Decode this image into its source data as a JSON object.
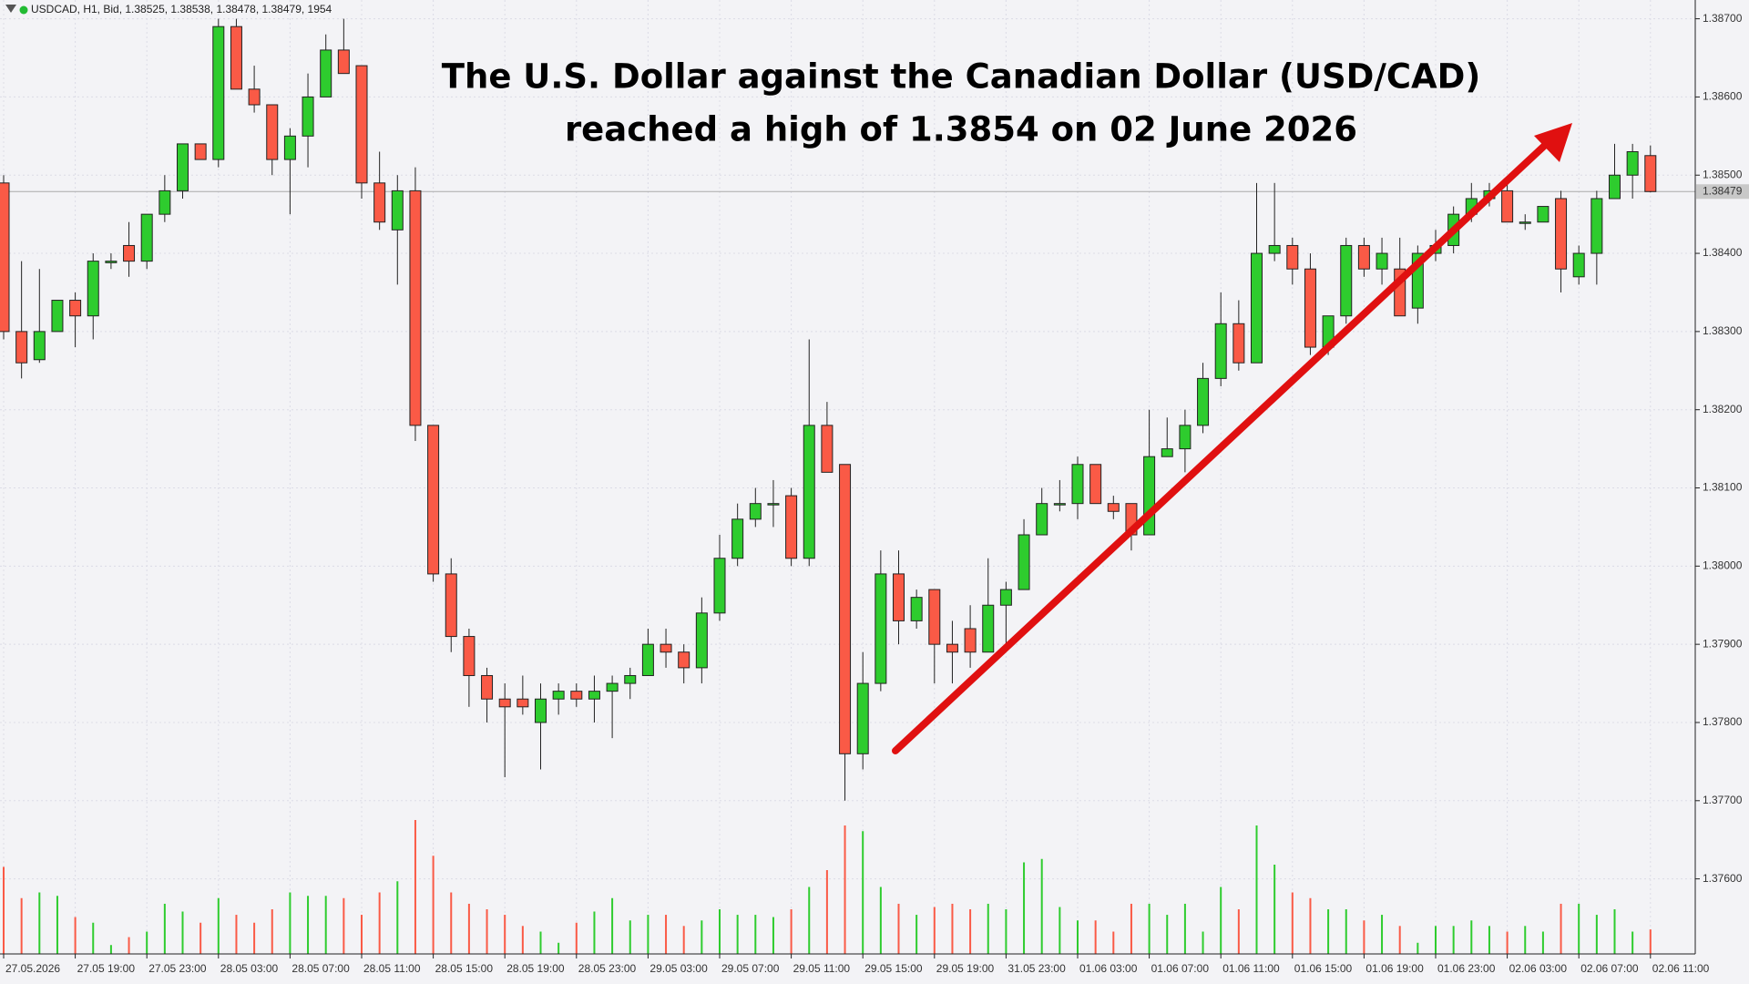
{
  "chart_data": {
    "type": "candlestick",
    "header": "USDCAD, H1, Bid, 1.38525, 1.38538, 1.38478, 1.38479, 1954",
    "title_lines": [
      "The U.S. Dollar against the Canadian Dollar (USD/CAD)",
      "reached a high of 1.3854 on 02 June 2026"
    ],
    "categories": [
      "27.05.2026",
      null,
      null,
      null,
      "27.05 19:00",
      null,
      null,
      null,
      "27.05 23:00",
      null,
      null,
      null,
      "28.05 03:00",
      null,
      null,
      null,
      "28.05 07:00",
      null,
      null,
      null,
      "28.05 11:00",
      null,
      null,
      null,
      "28.05 15:00",
      null,
      null,
      null,
      "28.05 19:00",
      null,
      null,
      null,
      "28.05 23:00",
      null,
      null,
      null,
      "29.05 03:00",
      null,
      null,
      null,
      "29.05 07:00",
      null,
      null,
      null,
      "29.05 11:00",
      null,
      null,
      null,
      "29.05 15:00",
      null,
      null,
      null,
      "29.05 19:00",
      null,
      null,
      null,
      "31.05 23:00",
      null,
      null,
      null,
      "01.06 03:00",
      null,
      null,
      null,
      "01.06 07:00",
      null,
      null,
      null,
      "01.06 11:00",
      null,
      null,
      null,
      "01.06 15:00",
      null,
      null,
      null,
      "01.06 19:00",
      null,
      null,
      null,
      "01.06 23:00",
      null,
      null,
      null,
      "02.06 03:00",
      null,
      null,
      null,
      "02.06 07:00",
      null,
      null,
      null,
      "02.06 11:00"
    ],
    "open": [
      1.3849,
      1.383,
      1.38264,
      1.383,
      1.3834,
      1.3832,
      1.38388,
      1.3841,
      1.3839,
      1.3845,
      1.3848,
      1.3854,
      1.3852,
      1.3869,
      1.3861,
      1.3859,
      1.3852,
      1.3855,
      1.386,
      1.3866,
      1.3864,
      1.3849,
      1.3843,
      1.3848,
      1.3818,
      1.3799,
      1.3791,
      1.3786,
      1.3783,
      1.3783,
      1.378,
      1.3783,
      1.3784,
      1.3783,
      1.3784,
      1.3785,
      1.3786,
      1.379,
      1.3789,
      1.3787,
      1.3794,
      1.3801,
      1.3806,
      1.3808,
      1.3809,
      1.3801,
      1.3818,
      1.3813,
      1.3776,
      1.3785,
      1.3799,
      1.3793,
      1.3797,
      1.379,
      1.3792,
      1.3789,
      1.3795,
      1.3797,
      1.3804,
      1.3808,
      1.3808,
      1.3813,
      1.3808,
      1.3808,
      1.3804,
      1.3814,
      1.3815,
      1.3818,
      1.3824,
      1.3831,
      1.3826,
      1.384,
      1.3841,
      1.3838,
      1.3828,
      1.3832,
      1.3841,
      1.3838,
      1.3838,
      1.3833,
      1.384,
      1.3841,
      1.3845,
      1.3847,
      1.3848,
      1.3844,
      1.3844,
      1.3847,
      1.3837,
      1.384,
      1.3847,
      1.385,
      1.38525
    ],
    "high": [
      1.385,
      1.3839,
      1.3838,
      1.3834,
      1.3835,
      1.384,
      1.384,
      1.3844,
      1.3845,
      1.385,
      1.3854,
      1.3854,
      1.387,
      1.387,
      1.3864,
      1.3859,
      1.3856,
      1.3863,
      1.3868,
      1.387,
      1.3864,
      1.3853,
      1.385,
      1.3851,
      1.3818,
      1.3801,
      1.3792,
      1.3787,
      1.3785,
      1.3786,
      1.3785,
      1.3785,
      1.3785,
      1.3786,
      1.3786,
      1.3787,
      1.3792,
      1.3792,
      1.379,
      1.3796,
      1.3804,
      1.3808,
      1.381,
      1.3811,
      1.381,
      1.3829,
      1.3821,
      1.3813,
      1.3789,
      1.3802,
      1.3802,
      1.3797,
      1.3797,
      1.3793,
      1.3795,
      1.3801,
      1.3798,
      1.3806,
      1.381,
      1.3811,
      1.3814,
      1.3813,
      1.3809,
      1.3808,
      1.382,
      1.3819,
      1.382,
      1.3826,
      1.3835,
      1.3834,
      1.3849,
      1.3849,
      1.3842,
      1.384,
      1.3832,
      1.3842,
      1.3842,
      1.3842,
      1.3842,
      1.3841,
      1.3843,
      1.3846,
      1.3849,
      1.3849,
      1.3849,
      1.3845,
      1.3846,
      1.3848,
      1.3841,
      1.3848,
      1.3854,
      1.3854,
      1.38538
    ],
    "low": [
      1.3829,
      1.3824,
      1.3826,
      1.383,
      1.3828,
      1.3829,
      1.3838,
      1.3837,
      1.3838,
      1.3844,
      1.3847,
      1.3852,
      1.3851,
      1.3861,
      1.3858,
      1.385,
      1.3845,
      1.3851,
      1.386,
      1.3863,
      1.3847,
      1.3843,
      1.3836,
      1.3816,
      1.3798,
      1.3789,
      1.3782,
      1.378,
      1.3773,
      1.3781,
      1.3774,
      1.3781,
      1.3782,
      1.378,
      1.3778,
      1.3783,
      1.3786,
      1.3787,
      1.3785,
      1.3785,
      1.3793,
      1.38,
      1.3805,
      1.3805,
      1.38,
      1.38,
      1.3812,
      1.377,
      1.3774,
      1.3784,
      1.379,
      1.3792,
      1.3785,
      1.3785,
      1.3787,
      1.3789,
      1.379,
      1.3797,
      1.3804,
      1.3807,
      1.3806,
      1.3808,
      1.3806,
      1.3802,
      1.3804,
      1.3814,
      1.3812,
      1.3817,
      1.3823,
      1.3825,
      1.3826,
      1.3839,
      1.3836,
      1.3827,
      1.3827,
      1.3831,
      1.3837,
      1.3836,
      1.3832,
      1.3831,
      1.3839,
      1.384,
      1.3844,
      1.3846,
      1.3844,
      1.3843,
      1.3844,
      1.3835,
      1.3836,
      1.3836,
      1.3847,
      1.3847,
      1.38478
    ],
    "close": [
      1.383,
      1.3826,
      1.383,
      1.3834,
      1.3832,
      1.3839,
      1.3839,
      1.3839,
      1.3845,
      1.3848,
      1.3854,
      1.3852,
      1.3869,
      1.3861,
      1.3859,
      1.3852,
      1.3855,
      1.386,
      1.3866,
      1.3863,
      1.3849,
      1.3844,
      1.3848,
      1.3818,
      1.3799,
      1.3791,
      1.3786,
      1.3783,
      1.3782,
      1.3782,
      1.3783,
      1.3784,
      1.3783,
      1.3784,
      1.3785,
      1.3786,
      1.379,
      1.3789,
      1.3787,
      1.3794,
      1.3801,
      1.3806,
      1.3808,
      1.3808,
      1.3801,
      1.3818,
      1.3812,
      1.3776,
      1.3785,
      1.3799,
      1.3793,
      1.3796,
      1.379,
      1.3789,
      1.3789,
      1.3795,
      1.3797,
      1.3804,
      1.3808,
      1.3808,
      1.3813,
      1.3808,
      1.3807,
      1.3804,
      1.3814,
      1.3815,
      1.3818,
      1.3824,
      1.3831,
      1.3826,
      1.384,
      1.3841,
      1.3838,
      1.3828,
      1.3832,
      1.3841,
      1.3838,
      1.384,
      1.3832,
      1.384,
      1.3841,
      1.3845,
      1.3847,
      1.3848,
      1.3844,
      1.3844,
      1.3846,
      1.3838,
      1.384,
      1.3847,
      1.385,
      1.3853,
      1.38479
    ],
    "volume": [
      6940,
      4450,
      4900,
      4630,
      2940,
      2490,
      710,
      1340,
      1780,
      4000,
      3380,
      2490,
      4450,
      3120,
      2490,
      3560,
      4900,
      4630,
      4630,
      4450,
      3120,
      4900,
      5790,
      10680,
      7830,
      4900,
      4000,
      3560,
      3120,
      2230,
      1780,
      890,
      2490,
      3380,
      4450,
      2670,
      3120,
      3120,
      2230,
      2670,
      3560,
      3120,
      3120,
      2940,
      3560,
      5340,
      6680,
      10240,
      9790,
      5340,
      4000,
      3120,
      3740,
      4000,
      3560,
      4000,
      3560,
      7300,
      7570,
      3740,
      2670,
      2670,
      1780,
      4000,
      4000,
      3120,
      4000,
      1780,
      5340,
      3560,
      10240,
      7120,
      4900,
      4450,
      3560,
      3560,
      2670,
      3120,
      2230,
      890,
      2230,
      2230,
      2670,
      2230,
      1780,
      2230,
      1780,
      4000,
      4000,
      3120,
      3560,
      1780,
      1954
    ],
    "up_color": "#2ecc2e",
    "down_color": "#fa5a46",
    "ylim": [
      1.37504,
      1.38724
    ],
    "yticks": [
      {
        "value": 1.387,
        "label": "1.38700"
      },
      {
        "value": 1.386,
        "label": "1.38600"
      },
      {
        "value": 1.385,
        "label": "1.38500"
      },
      {
        "value": 1.384,
        "label": "1.38400"
      },
      {
        "value": 1.383,
        "label": "1.38300"
      },
      {
        "value": 1.382,
        "label": "1.38200"
      },
      {
        "value": 1.381,
        "label": "1.38100"
      },
      {
        "value": 1.38,
        "label": "1.38000"
      },
      {
        "value": 1.379,
        "label": "1.37900"
      },
      {
        "value": 1.378,
        "label": "1.37800"
      },
      {
        "value": 1.377,
        "label": "1.37700"
      },
      {
        "value": 1.376,
        "label": "1.37600"
      }
    ],
    "grid": true
  }
}
